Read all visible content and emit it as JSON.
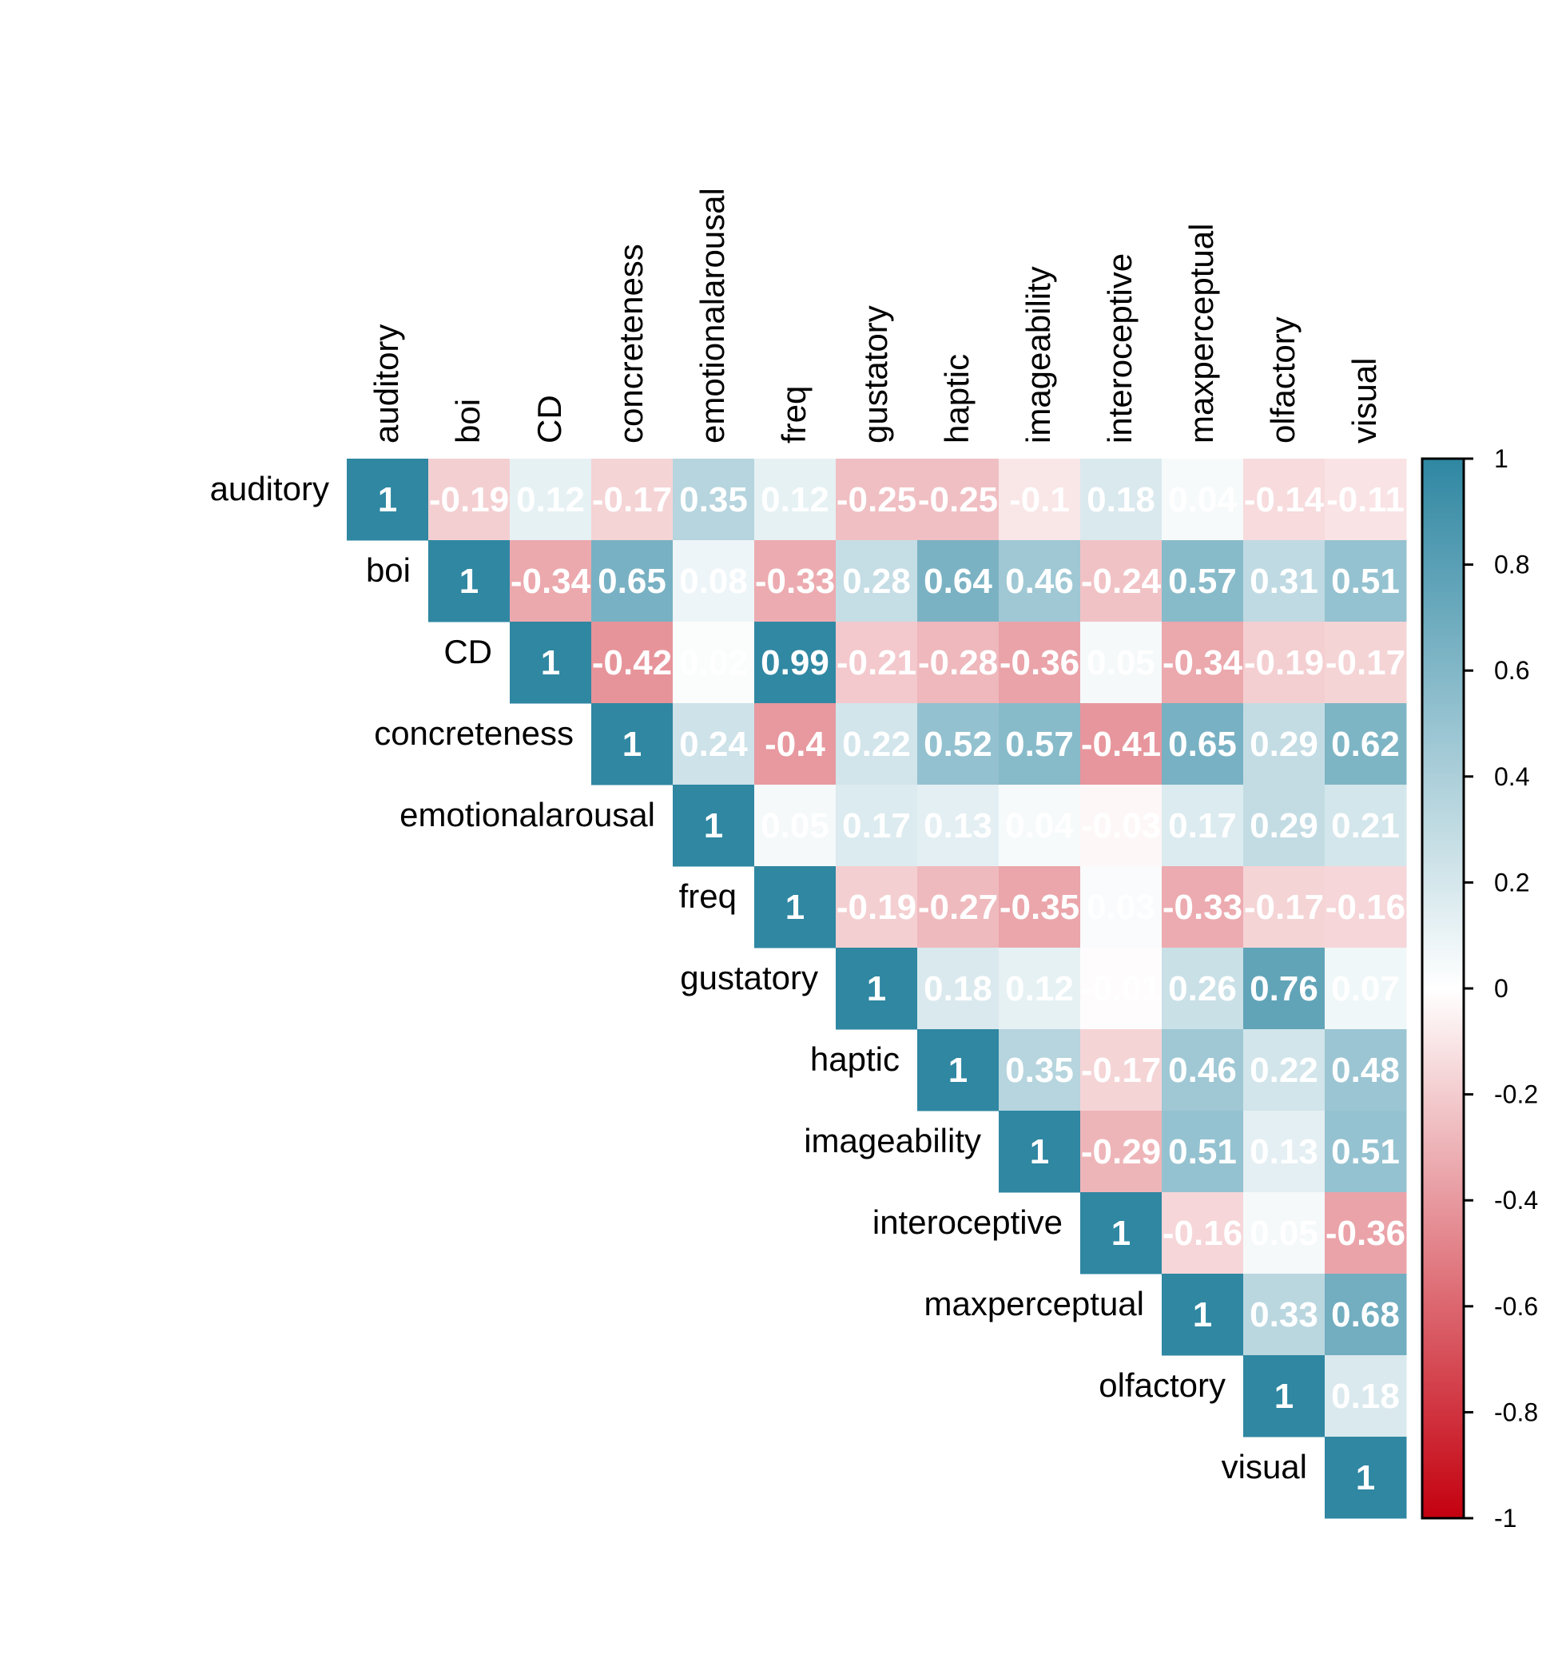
{
  "chart_data": {
    "type": "heatmap",
    "subtype": "correlation-matrix-upper-triangle",
    "variables": [
      "auditory",
      "boi",
      "CD",
      "concreteness",
      "emotionalarousal",
      "freq",
      "gustatory",
      "haptic",
      "imageability",
      "interoceptive",
      "maxperceptual",
      "olfactory",
      "visual"
    ],
    "matrix": [
      [
        1,
        -0.19,
        0.12,
        -0.17,
        0.35,
        0.12,
        -0.25,
        -0.25,
        -0.1,
        0.18,
        0.04,
        -0.14,
        -0.11
      ],
      [
        null,
        1,
        -0.34,
        0.65,
        0.08,
        -0.33,
        0.28,
        0.64,
        0.46,
        -0.24,
        0.57,
        0.31,
        0.51
      ],
      [
        null,
        null,
        1,
        -0.42,
        0.02,
        0.99,
        -0.21,
        -0.28,
        -0.36,
        0.05,
        -0.34,
        -0.19,
        -0.17
      ],
      [
        null,
        null,
        null,
        1,
        0.24,
        -0.4,
        0.22,
        0.52,
        0.57,
        -0.41,
        0.65,
        0.29,
        0.62
      ],
      [
        null,
        null,
        null,
        null,
        1,
        0.05,
        0.17,
        0.13,
        0.04,
        -0.03,
        0.17,
        0.29,
        0.21
      ],
      [
        null,
        null,
        null,
        null,
        null,
        1,
        -0.19,
        -0.27,
        -0.35,
        0.03,
        -0.33,
        -0.17,
        -0.16
      ],
      [
        null,
        null,
        null,
        null,
        null,
        null,
        1,
        0.18,
        0.12,
        -0.01,
        0.26,
        0.76,
        0.07
      ],
      [
        null,
        null,
        null,
        null,
        null,
        null,
        null,
        1,
        0.35,
        -0.17,
        0.46,
        0.22,
        0.48
      ],
      [
        null,
        null,
        null,
        null,
        null,
        null,
        null,
        null,
        1,
        -0.29,
        0.51,
        0.13,
        0.51
      ],
      [
        null,
        null,
        null,
        null,
        null,
        null,
        null,
        null,
        null,
        1,
        -0.16,
        0.05,
        -0.36
      ],
      [
        null,
        null,
        null,
        null,
        null,
        null,
        null,
        null,
        null,
        null,
        1,
        0.33,
        0.68
      ],
      [
        null,
        null,
        null,
        null,
        null,
        null,
        null,
        null,
        null,
        null,
        null,
        1,
        0.18
      ],
      [
        null,
        null,
        null,
        null,
        null,
        null,
        null,
        null,
        null,
        null,
        null,
        null,
        1
      ]
    ],
    "color_scale": {
      "range": [
        -1,
        1
      ],
      "negative_color": "#C4000F",
      "mid_color": "#FFFFFF",
      "positive_color": "#2F87A2"
    },
    "colorbar_ticks": [
      "1",
      "0.8",
      "0.6",
      "0.4",
      "0.2",
      "0",
      "-0.2",
      "-0.4",
      "-0.6",
      "-0.8",
      "-1"
    ],
    "legend_placement": "right",
    "title": "",
    "xlabel": "",
    "ylabel": ""
  }
}
